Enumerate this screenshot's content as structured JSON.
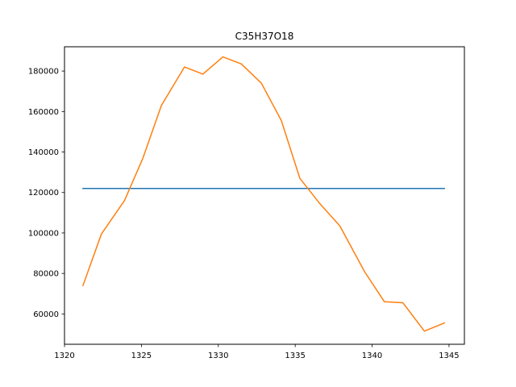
{
  "chart_data": {
    "type": "line",
    "title": "C35H37O18",
    "xlabel": "",
    "ylabel": "",
    "xlim": [
      1320,
      1346
    ],
    "ylim": [
      45000,
      192000
    ],
    "xticks": [
      1320,
      1325,
      1330,
      1335,
      1340,
      1345
    ],
    "yticks": [
      60000,
      80000,
      100000,
      120000,
      140000,
      160000,
      180000
    ],
    "grid": false,
    "series": [
      {
        "color": "#1f77b4",
        "x": [
          1321.2,
          1344.7
        ],
        "y": [
          122000,
          122000
        ]
      },
      {
        "color": "#ff7f0e",
        "x": [
          1321.2,
          1322.4,
          1323.9,
          1325.1,
          1326.3,
          1327.8,
          1329.0,
          1330.3,
          1331.5,
          1332.8,
          1334.1,
          1335.3,
          1336.6,
          1337.9,
          1339.5,
          1340.8,
          1342.0,
          1343.4,
          1344.7
        ],
        "y": [
          74000,
          99500,
          116000,
          137000,
          163000,
          182000,
          178500,
          187000,
          183500,
          174000,
          155500,
          127000,
          114500,
          103500,
          81000,
          66000,
          65500,
          51500,
          55500
        ]
      }
    ]
  }
}
